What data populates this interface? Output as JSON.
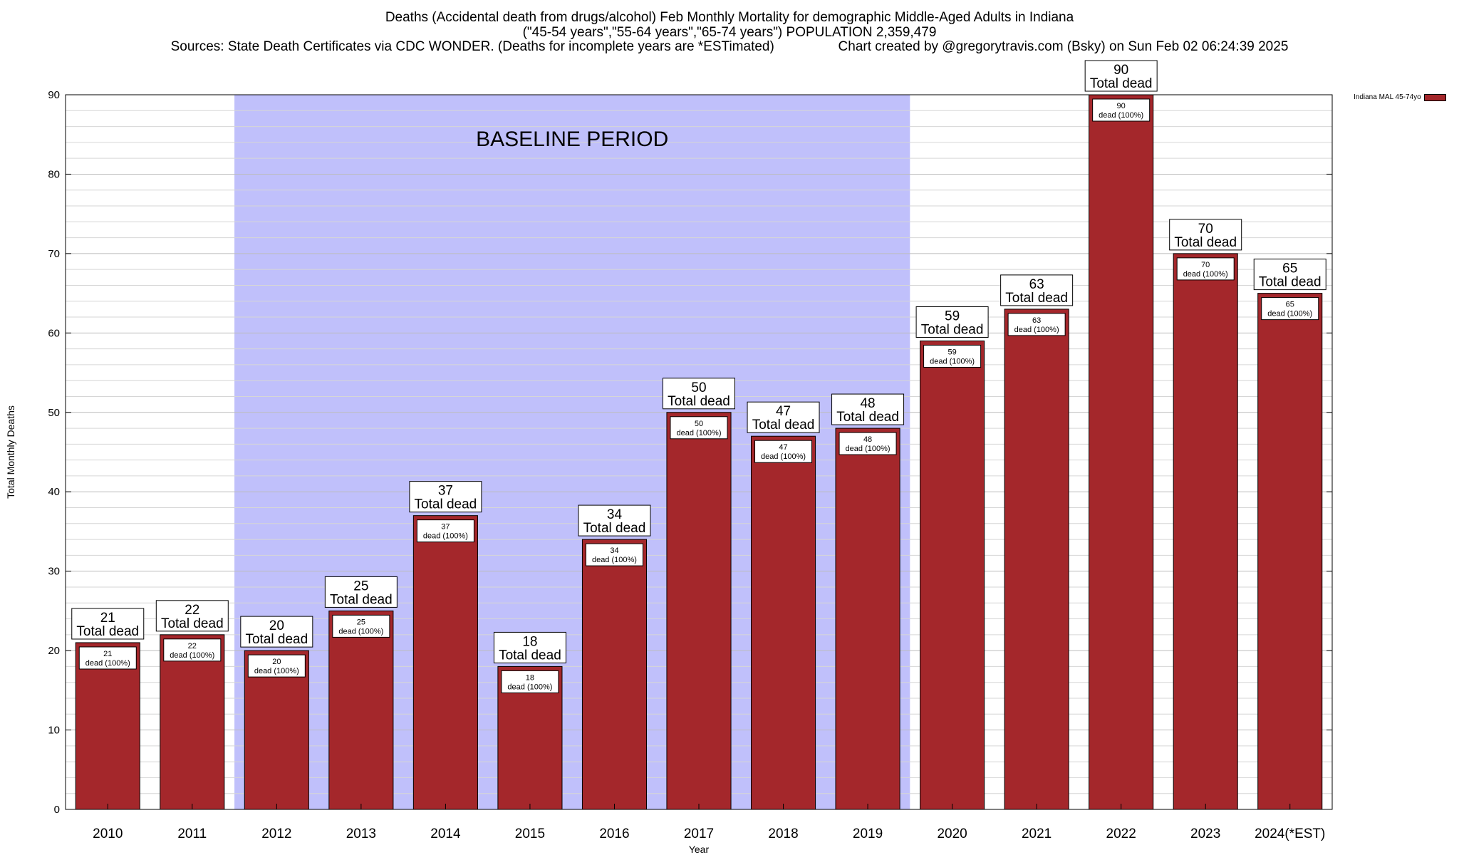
{
  "chart_data": {
    "type": "bar",
    "title_lines": [
      "Deaths (Accidental death from drugs/alcohol) Feb Monthly Mortality for demographic Middle-Aged Adults in Indiana",
      "(\"45-54 years\",\"55-64 years\",\"65-74 years\") POPULATION 2,359,479",
      "Sources: State Death Certificates via CDC WONDER. (Deaths for incomplete years are *ESTimated)                 Chart created by @gregorytravis.com (Bsky) on Sun Feb 02 06:24:39 2025"
    ],
    "xlabel": "Year",
    "ylabel": "Total Monthly Deaths",
    "ylim": [
      0,
      90
    ],
    "yticks": [
      0,
      10,
      20,
      30,
      40,
      50,
      60,
      70,
      80,
      90
    ],
    "grid": true,
    "legend_position": "top-right",
    "categories": [
      "2010",
      "2011",
      "2012",
      "2013",
      "2014",
      "2015",
      "2016",
      "2017",
      "2018",
      "2019",
      "2020",
      "2021",
      "2022",
      "2023",
      "2024(*EST)"
    ],
    "series": [
      {
        "name": "Indiana MAL 45-74yo",
        "values": [
          21,
          22,
          20,
          25,
          37,
          18,
          34,
          50,
          47,
          48,
          59,
          63,
          90,
          70,
          65
        ]
      }
    ],
    "total_label": "Total dead",
    "inner_label": "dead (100%)",
    "baseline_period": {
      "label": "BASELINE PERIOD",
      "from": "2012",
      "to": "2019"
    },
    "colors": {
      "bar": "#a4272b",
      "baseline": "#c0c0fb",
      "grid": "#c8c8c8"
    }
  }
}
